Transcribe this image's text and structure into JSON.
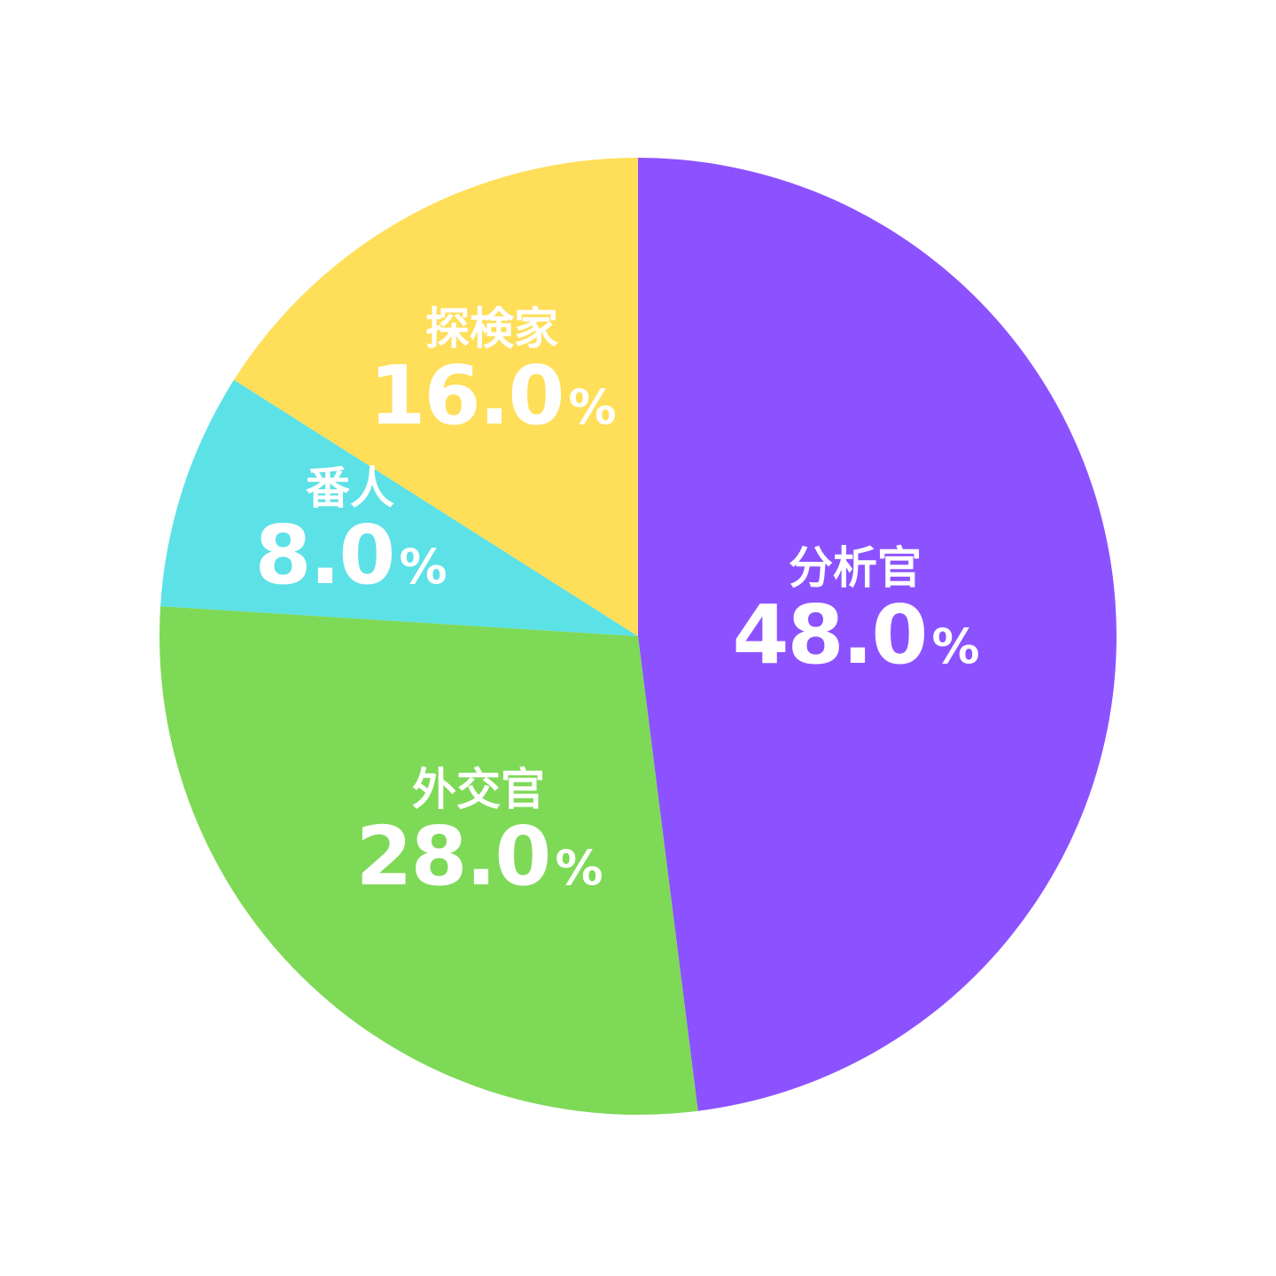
{
  "chart_data": {
    "type": "pie",
    "start": "top",
    "direction": "clockwise",
    "slices": [
      {
        "label": "分析官",
        "value": 48.0,
        "display": "48.0",
        "color": "#8C52FF"
      },
      {
        "label": "外交官",
        "value": 28.0,
        "display": "28.0",
        "color": "#7ED957"
      },
      {
        "label": "番人",
        "value": 8.0,
        "display": "8.0",
        "color": "#5CE1E6"
      },
      {
        "label": "探検家",
        "value": 16.0,
        "display": "16.0",
        "color": "#FFDE59"
      }
    ],
    "unit": "%"
  }
}
